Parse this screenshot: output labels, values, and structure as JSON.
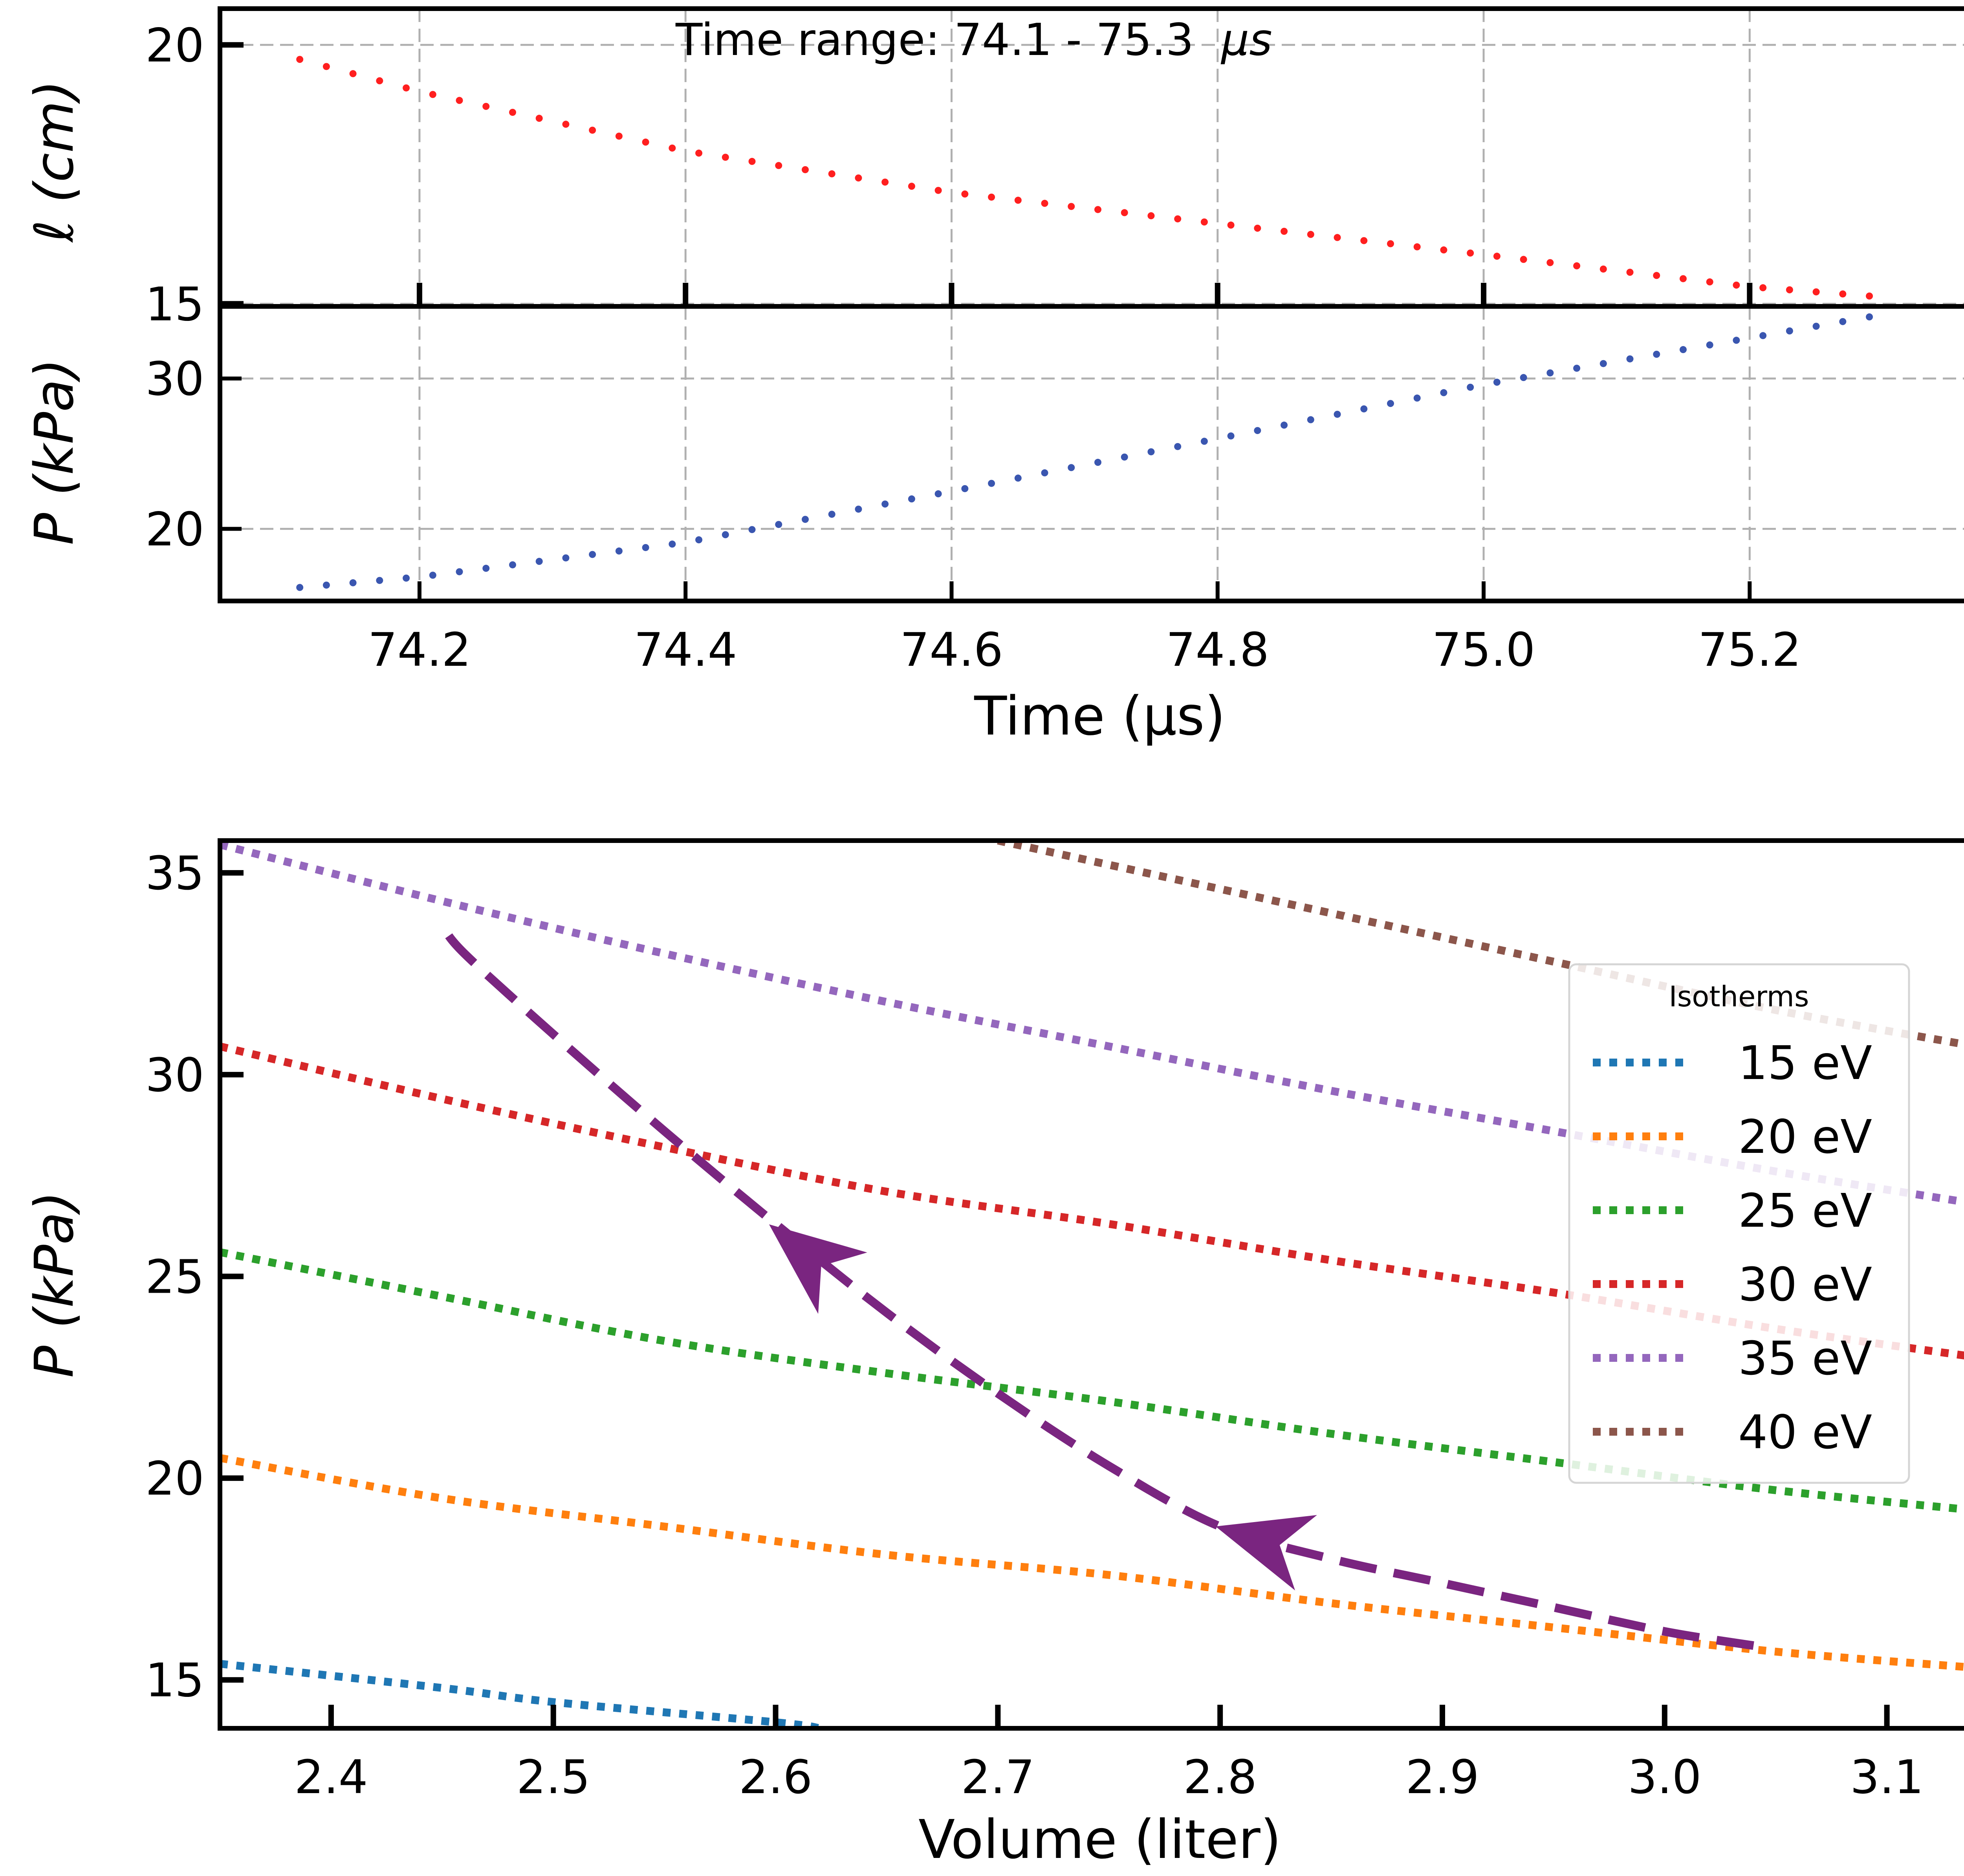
{
  "colors": {
    "length_series": "#ff1f1f",
    "pressure_series": "#3a56b0",
    "path": "#7a2580",
    "grid": "#b0b0b0",
    "isotherm_15": "#1f77b4",
    "isotherm_20": "#ff7f0e",
    "isotherm_25": "#2ca02c",
    "isotherm_30": "#d62728",
    "isotherm_35": "#9467bd",
    "isotherm_40": "#8c564b"
  },
  "chart_data": [
    {
      "type": "scatter",
      "panel": "top",
      "annotation": "Time range: 74.1 - 75.3",
      "annotation_unit": "μs",
      "ylabel": "ℓ (cm)",
      "xlim": [
        74.05,
        75.37
      ],
      "ylim": [
        14.95,
        20.7
      ],
      "yticks": [
        15,
        20
      ],
      "grid": true,
      "series": [
        {
          "x_start": 74.11,
          "x_end": 75.29,
          "points": 60,
          "y_samples": [
            [
              74.11,
              19.72
            ],
            [
              74.2,
              19.1
            ],
            [
              74.4,
              17.95
            ],
            [
              74.6,
              17.15
            ],
            [
              74.8,
              16.55
            ],
            [
              75.0,
              15.95
            ],
            [
              75.2,
              15.33
            ],
            [
              75.29,
              15.15
            ]
          ]
        }
      ]
    },
    {
      "type": "scatter",
      "panel": "middle",
      "xlabel": "Time (μs)",
      "ylabel": "P (kPa)",
      "xlim": [
        74.05,
        75.37
      ],
      "ylim": [
        15.2,
        34.8
      ],
      "xticks": [
        "74.2",
        "74.4",
        "74.6",
        "74.8",
        "75.0",
        "75.2"
      ],
      "yticks": [
        20,
        30
      ],
      "grid": true,
      "series": [
        {
          "x_start": 74.11,
          "x_end": 75.29,
          "points": 60,
          "y_samples": [
            [
              74.11,
              16.1
            ],
            [
              74.2,
              16.8
            ],
            [
              74.4,
              19.1
            ],
            [
              74.6,
              22.5
            ],
            [
              74.8,
              26.0
            ],
            [
              75.0,
              29.6
            ],
            [
              75.2,
              32.7
            ],
            [
              75.29,
              34.1
            ]
          ]
        }
      ]
    },
    {
      "type": "line",
      "panel": "bottom",
      "xlabel": "Volume (liter)",
      "ylabel": "P (kPa)",
      "xlim": [
        2.35,
        3.14
      ],
      "ylim": [
        13.8,
        35.8
      ],
      "xticks": [
        "2.4",
        "2.5",
        "2.6",
        "2.7",
        "2.8",
        "2.9",
        "3.0",
        "3.1"
      ],
      "yticks": [
        15,
        20,
        25,
        30,
        35
      ],
      "grid": false,
      "legend": {
        "title": "Isotherms",
        "position": "right"
      },
      "isotherms": [
        {
          "name": "15 eV",
          "color_key": "isotherm_15",
          "points": [
            [
              2.35,
              15.4
            ],
            [
              2.45,
              14.8
            ],
            [
              2.5,
              14.45
            ],
            [
              2.6,
              13.95
            ],
            [
              2.62,
              13.8
            ]
          ]
        },
        {
          "name": "20 eV",
          "color_key": "isotherm_20",
          "points": [
            [
              2.35,
              20.5
            ],
            [
              2.45,
              19.5
            ],
            [
              2.55,
              18.8
            ],
            [
              2.65,
              18.1
            ],
            [
              2.75,
              17.6
            ],
            [
              2.85,
              16.9
            ],
            [
              2.95,
              16.3
            ],
            [
              3.05,
              15.7
            ],
            [
              3.14,
              15.3
            ]
          ]
        },
        {
          "name": "25 eV",
          "color_key": "isotherm_25",
          "points": [
            [
              2.35,
              25.6
            ],
            [
              2.45,
              24.5
            ],
            [
              2.55,
              23.4
            ],
            [
              2.65,
              22.6
            ],
            [
              2.75,
              21.9
            ],
            [
              2.85,
              21.1
            ],
            [
              2.95,
              20.4
            ],
            [
              3.05,
              19.7
            ],
            [
              3.14,
              19.2
            ]
          ]
        },
        {
          "name": "30 eV",
          "color_key": "isotherm_30",
          "points": [
            [
              2.35,
              30.7
            ],
            [
              2.45,
              29.4
            ],
            [
              2.55,
              28.2
            ],
            [
              2.65,
              27.1
            ],
            [
              2.75,
              26.3
            ],
            [
              2.85,
              25.4
            ],
            [
              2.95,
              24.6
            ],
            [
              3.05,
              23.7
            ],
            [
              3.14,
              23.0
            ]
          ]
        },
        {
          "name": "35 eV",
          "color_key": "isotherm_35",
          "points": [
            [
              2.35,
              35.7
            ],
            [
              2.45,
              34.3
            ],
            [
              2.55,
              33.0
            ],
            [
              2.65,
              31.8
            ],
            [
              2.75,
              30.7
            ],
            [
              2.85,
              29.6
            ],
            [
              2.95,
              28.6
            ],
            [
              3.05,
              27.6
            ],
            [
              3.14,
              26.8
            ]
          ]
        },
        {
          "name": "40 eV",
          "color_key": "isotherm_40",
          "points": [
            [
              2.7,
              35.8
            ],
            [
              2.75,
              35.2
            ],
            [
              2.85,
              34.0
            ],
            [
              2.95,
              32.8
            ],
            [
              3.05,
              31.6
            ],
            [
              3.14,
              30.7
            ]
          ]
        }
      ],
      "path": {
        "style": "dashed",
        "direction": "decreasing volume",
        "points": [
          [
            3.04,
            15.85
          ],
          [
            3.0,
            16.2
          ],
          [
            2.95,
            16.8
          ],
          [
            2.9,
            17.4
          ],
          [
            2.85,
            18.0
          ],
          [
            2.8,
            18.8
          ],
          [
            2.75,
            20.3
          ],
          [
            2.7,
            22.1
          ],
          [
            2.65,
            24.1
          ],
          [
            2.6,
            26.3
          ],
          [
            2.55,
            28.6
          ],
          [
            2.5,
            31.0
          ],
          [
            2.46,
            33.0
          ],
          [
            2.45,
            33.7
          ]
        ],
        "arrows": [
          [
            2.82,
            18.45
          ],
          [
            2.615,
            25.5
          ]
        ]
      }
    }
  ]
}
